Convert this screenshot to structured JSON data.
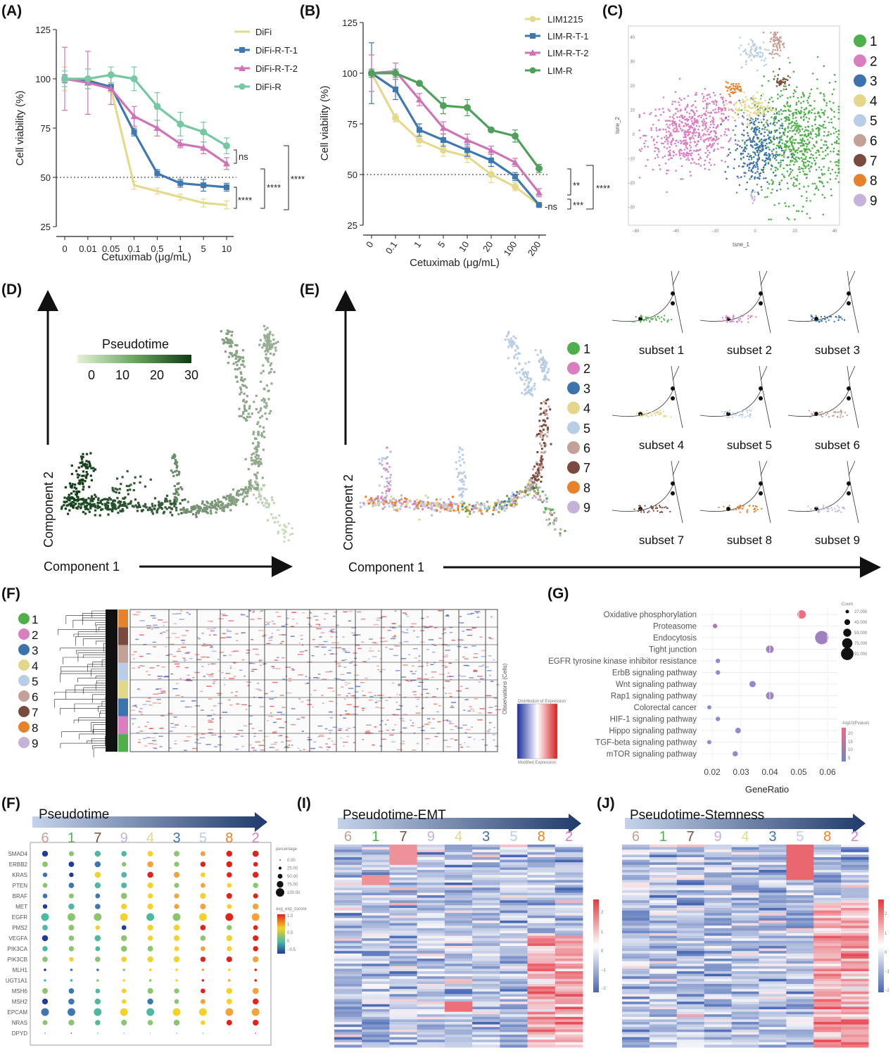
{
  "chart_data": [
    {
      "panel": "(A)",
      "type": "line",
      "x": [
        "0",
        "0.01",
        "0.05",
        "0.1",
        "0.5",
        "1",
        "5",
        "10"
      ],
      "xlabel": "Cetuximab (μg/mL)",
      "ylabel": "Cell viability (%)",
      "ylim": [
        25,
        125
      ],
      "yticks": [
        "25",
        "50",
        "75",
        "100",
        "125"
      ],
      "reference_line": 50,
      "series": [
        {
          "name": "DiFi",
          "color": "#e5da8c",
          "values": [
            100,
            100,
            95,
            46,
            43,
            40,
            37,
            36
          ],
          "err": [
            6,
            5,
            2,
            2,
            1.5,
            1.5,
            2,
            2
          ]
        },
        {
          "name": "DiFi-R-T-1",
          "color": "#3f77b0",
          "values": [
            100,
            99,
            96,
            73,
            52,
            47,
            46,
            45
          ],
          "err": [
            2,
            2,
            2,
            2,
            2,
            2,
            3,
            2
          ]
        },
        {
          "name": "DiFi-R-T-2",
          "color": "#cf73b7",
          "values": [
            100,
            98,
            95,
            81,
            75,
            67,
            65,
            57
          ],
          "err": [
            16,
            16,
            8,
            5,
            4,
            2,
            3,
            3
          ]
        },
        {
          "name": "DiFi-R",
          "color": "#76c7a4",
          "values": [
            100,
            100,
            102,
            100,
            86,
            77,
            73,
            66
          ],
          "err": [
            4,
            5,
            4,
            6,
            7,
            6,
            5,
            4
          ]
        }
      ],
      "annotations": [
        "ns",
        "****",
        "****",
        "****"
      ]
    },
    {
      "panel": "(B)",
      "type": "line",
      "x": [
        "0",
        "0.1",
        "1",
        "5",
        "10",
        "20",
        "100",
        "200"
      ],
      "xlabel": "Cetuximab (μg/mL)",
      "ylabel": "Cell viability (%)",
      "ylim": [
        25,
        125
      ],
      "yticks": [
        "25",
        "50",
        "75",
        "100",
        "125"
      ],
      "reference_line": 50,
      "series": [
        {
          "name": "LIM1215",
          "color": "#e5da8c",
          "values": [
            100,
            78,
            67,
            62,
            59,
            50,
            44,
            35
          ],
          "err": [
            2,
            2,
            3,
            3,
            3,
            4,
            2,
            1
          ]
        },
        {
          "name": "LIM-R-T-1",
          "color": "#3f77b0",
          "values": [
            100,
            92,
            72,
            67,
            62,
            57,
            49,
            35
          ],
          "err": [
            15,
            5,
            3,
            3,
            3,
            3,
            2,
            1
          ]
        },
        {
          "name": "LIM-R-T-2",
          "color": "#cf73b7",
          "values": [
            100,
            101,
            87,
            73,
            67,
            62,
            56,
            41
          ],
          "err": [
            9,
            4,
            3,
            3,
            3,
            2,
            2,
            2
          ]
        },
        {
          "name": "LIM-R",
          "color": "#4fa05b",
          "values": [
            100,
            100,
            95,
            84,
            83,
            72,
            69,
            53
          ],
          "err": [
            2,
            2,
            1,
            4,
            4,
            1,
            3,
            2
          ]
        }
      ],
      "annotations": [
        "**",
        "****",
        "-ns",
        "***"
      ]
    },
    {
      "panel": "(C)",
      "type": "scatter",
      "xlabel": "tsne_1",
      "ylabel": "tsne_2",
      "xticks": [
        "−60",
        "−40",
        "−20",
        "0",
        "20",
        "40"
      ],
      "yticks": [
        "40",
        "30",
        "20",
        "10",
        "0",
        "−10",
        "−20",
        "−30"
      ],
      "legend": [
        "1",
        "2",
        "3",
        "4",
        "5",
        "6",
        "7",
        "8",
        "9"
      ]
    },
    {
      "panel": "(D)",
      "type": "scatter",
      "xlabel": "Component 1",
      "ylabel": "Component 2",
      "colorbar_title": "Pseudotime",
      "colorbar_ticks": [
        "0",
        "10",
        "20",
        "30"
      ]
    },
    {
      "panel": "(E)",
      "type": "scatter",
      "xlabel": "Component 1",
      "ylabel": "Component 2",
      "legend": [
        "1",
        "2",
        "3",
        "4",
        "5",
        "6",
        "7",
        "8",
        "9"
      ],
      "subsets": [
        "subset 1",
        "subset 2",
        "subset 3",
        "subset 4",
        "subset 5",
        "subset 6",
        "subset 7",
        "subset 8",
        "subset 9"
      ]
    },
    {
      "panel": "(F)",
      "type": "heatmap",
      "legend": [
        "1",
        "2",
        "3",
        "4",
        "5",
        "6",
        "7",
        "8",
        "9"
      ],
      "side_label": "Observations (Cells)",
      "colorbar_title": "Distribution of Expression",
      "colorbar_label": "Modified Expression"
    },
    {
      "panel": "(G)",
      "type": "scatter",
      "xlabel": "GeneRatio",
      "xticks": [
        "0.02",
        "0.03",
        "0.04",
        "0.05",
        "0.06"
      ],
      "categories": [
        "Oxidative phosphorylation",
        "Proteasome",
        "Endocytosis",
        "Tight junction",
        "EGFR tyrosine kinase inhibitor resistance",
        "ErbB signaling pathway",
        "Wnt signaling pathway",
        "Rap1 signaling pathway",
        "Colorectal cancer",
        "HIF-1 signaling pathway",
        "Hippo signaling pathway",
        "TGF-beta signaling pathway",
        "mTOR signaling pathway"
      ],
      "gene_ratio": [
        0.051,
        0.021,
        0.058,
        0.04,
        0.022,
        0.022,
        0.034,
        0.04,
        0.019,
        0.022,
        0.029,
        0.019,
        0.028
      ],
      "count": [
        40,
        12,
        75,
        35,
        12,
        12,
        25,
        35,
        10,
        12,
        20,
        10,
        18
      ],
      "color": [
        "#ec6f82",
        "#b277b8",
        "#9e81bd",
        "#9f82c0",
        "#8a8fcc",
        "#8a8fcc",
        "#908acc",
        "#9b85c5",
        "#8a8fcc",
        "#8a8fcc",
        "#8d8dcc",
        "#8a8fcc",
        "#8d8dcc"
      ],
      "size_legend_title": "Count",
      "size_legend": [
        "27.000",
        "43.000",
        "59.000",
        "75.000",
        "91.000"
      ],
      "color_legend_title": "-log10(Pvalue)",
      "color_legend": [
        "20",
        "15",
        "10",
        "5"
      ]
    },
    {
      "panel": "(F)",
      "type": "scatter",
      "title": "Pseudotime",
      "categories": [
        "6",
        "1",
        "7",
        "9",
        "4",
        "3",
        "5",
        "8",
        "2"
      ],
      "genes": [
        "SMAD4",
        "ERBB2",
        "KRAS",
        "PTEN",
        "BRAF",
        "MET",
        "EGFR",
        "PMS2",
        "VEGFA",
        "PIK3CA",
        "PIK3CB",
        "MLH1",
        "UGT1A1",
        "MSH6",
        "MSH2",
        "EPCAM",
        "NRAS",
        "DPYD"
      ],
      "size_legend_title": "percentage",
      "size_legend": [
        "0.00",
        "25.00",
        "50.00",
        "75.00",
        "100.00"
      ],
      "color_legend_title": "avg_exp_zscore",
      "color_legend": [
        "1.5",
        "1",
        "0.5",
        "0",
        "−0.5"
      ]
    },
    {
      "panel": "(I)",
      "type": "heatmap",
      "title": "Pseudotime-EMT",
      "categories": [
        "6",
        "1",
        "7",
        "9",
        "4",
        "3",
        "5",
        "8",
        "2"
      ],
      "colorbar": [
        "2",
        "1",
        "0",
        "−1",
        "−2"
      ]
    },
    {
      "panel": "(J)",
      "type": "heatmap",
      "title": "Pseudotime-Stemness",
      "categories": [
        "6",
        "1",
        "7",
        "9",
        "4",
        "3",
        "5",
        "8",
        "2"
      ],
      "colorbar": [
        "2",
        "1",
        "0",
        "−1",
        "−2"
      ]
    }
  ],
  "cluster_colors": {
    "1": "#4fb04b",
    "2": "#d97fbf",
    "3": "#3c73ad",
    "4": "#e3d88a",
    "5": "#b9cde6",
    "6": "#c4a196",
    "7": "#7b4a3e",
    "8": "#e7822c",
    "9": "#c5b2d8"
  }
}
